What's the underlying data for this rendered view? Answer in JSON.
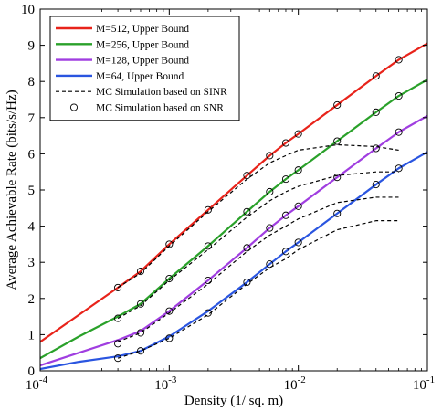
{
  "chart_data": {
    "type": "line",
    "xlabel": "Density (1/ sq. m)",
    "ylabel": "Average Achievable Rate (bits/s/Hz)",
    "xscale": "log",
    "xlim": [
      0.0001,
      0.1
    ],
    "ylim": [
      0,
      10
    ],
    "x_ticks": [
      0.0001,
      0.001,
      0.01,
      0.1
    ],
    "x_tick_labels": [
      {
        "base": "10",
        "exp": "-4"
      },
      {
        "base": "10",
        "exp": "-3"
      },
      {
        "base": "10",
        "exp": "-2"
      },
      {
        "base": "10",
        "exp": "-1"
      }
    ],
    "y_ticks": [
      0,
      1,
      2,
      3,
      4,
      5,
      6,
      7,
      8,
      9,
      10
    ],
    "y_tick_labels": [
      "0",
      "1",
      "2",
      "3",
      "4",
      "5",
      "6",
      "7",
      "8",
      "9",
      "10"
    ],
    "grid": false,
    "legend_position": "top-left",
    "series": [
      {
        "name": "M=512, Upper Bound",
        "style": "solid",
        "color": "#e8231a",
        "x": [
          0.0001,
          0.0002,
          0.0004,
          0.0006,
          0.001,
          0.002,
          0.004,
          0.006,
          0.008,
          0.01,
          0.02,
          0.04,
          0.06,
          0.1
        ],
        "y": [
          0.8,
          1.55,
          2.3,
          2.75,
          3.5,
          4.45,
          5.4,
          5.95,
          6.3,
          6.55,
          7.35,
          8.15,
          8.6,
          9.05
        ]
      },
      {
        "name": "M=256, Upper Bound",
        "style": "solid",
        "color": "#2aa12a",
        "x": [
          0.0001,
          0.0002,
          0.0004,
          0.0006,
          0.001,
          0.002,
          0.004,
          0.006,
          0.008,
          0.01,
          0.02,
          0.04,
          0.06,
          0.1
        ],
        "y": [
          0.35,
          0.95,
          1.5,
          1.85,
          2.55,
          3.45,
          4.4,
          4.95,
          5.3,
          5.55,
          6.35,
          7.15,
          7.6,
          8.05
        ]
      },
      {
        "name": "M=128, Upper Bound",
        "style": "solid",
        "color": "#a03ee0",
        "x": [
          0.0001,
          0.0002,
          0.0004,
          0.0006,
          0.001,
          0.002,
          0.004,
          0.006,
          0.008,
          0.01,
          0.02,
          0.04,
          0.06,
          0.1
        ],
        "y": [
          0.15,
          0.5,
          0.85,
          1.1,
          1.65,
          2.5,
          3.4,
          3.95,
          4.3,
          4.55,
          5.35,
          6.15,
          6.6,
          7.05
        ]
      },
      {
        "name": "M=64,  Upper Bound",
        "style": "solid",
        "color": "#2a55e0",
        "x": [
          0.0001,
          0.0002,
          0.0004,
          0.0006,
          0.001,
          0.002,
          0.004,
          0.006,
          0.008,
          0.01,
          0.02,
          0.04,
          0.06,
          0.1
        ],
        "y": [
          0.05,
          0.25,
          0.4,
          0.55,
          0.95,
          1.65,
          2.45,
          2.95,
          3.3,
          3.55,
          4.35,
          5.15,
          5.6,
          6.05
        ]
      },
      {
        "name": "MC Simulation based on SINR",
        "style": "dashed",
        "color": "#000000",
        "groups": [
          {
            "x": [
              0.0004,
              0.0006,
              0.001,
              0.002,
              0.004,
              0.006,
              0.008,
              0.01,
              0.02,
              0.04,
              0.06
            ],
            "y": [
              2.3,
              2.7,
              3.45,
              4.4,
              5.3,
              5.75,
              5.95,
              6.1,
              6.25,
              6.2,
              6.1
            ]
          },
          {
            "x": [
              0.0004,
              0.0006,
              0.001,
              0.002,
              0.004,
              0.006,
              0.008,
              0.01,
              0.02,
              0.04,
              0.06
            ],
            "y": [
              1.45,
              1.8,
              2.5,
              3.35,
              4.25,
              4.7,
              4.95,
              5.1,
              5.4,
              5.5,
              5.5
            ]
          },
          {
            "x": [
              0.0004,
              0.0006,
              0.001,
              0.002,
              0.004,
              0.006,
              0.008,
              0.01,
              0.02,
              0.04,
              0.06
            ],
            "y": [
              0.8,
              1.05,
              1.6,
              2.4,
              3.3,
              3.75,
              4.0,
              4.2,
              4.65,
              4.8,
              4.8
            ]
          },
          {
            "x": [
              0.0004,
              0.0006,
              0.001,
              0.002,
              0.004,
              0.006,
              0.008,
              0.01,
              0.02,
              0.04,
              0.06
            ],
            "y": [
              0.35,
              0.55,
              0.9,
              1.55,
              2.4,
              2.85,
              3.1,
              3.35,
              3.9,
              4.15,
              4.15
            ]
          }
        ]
      },
      {
        "name": "MC Simulation based on SNR",
        "style": "marker-circle",
        "color": "#000000",
        "groups": [
          {
            "x": [
              0.0004,
              0.0006,
              0.001,
              0.002,
              0.004,
              0.006,
              0.008,
              0.01,
              0.02,
              0.04,
              0.06
            ],
            "y": [
              2.3,
              2.75,
              3.5,
              4.45,
              5.4,
              5.95,
              6.3,
              6.55,
              7.35,
              8.15,
              8.6
            ]
          },
          {
            "x": [
              0.0004,
              0.0006,
              0.001,
              0.002,
              0.004,
              0.006,
              0.008,
              0.01,
              0.02,
              0.04,
              0.06
            ],
            "y": [
              1.45,
              1.85,
              2.55,
              3.45,
              4.4,
              4.95,
              5.3,
              5.55,
              6.35,
              7.15,
              7.6
            ]
          },
          {
            "x": [
              0.0004,
              0.0006,
              0.001,
              0.002,
              0.004,
              0.006,
              0.008,
              0.01,
              0.02,
              0.04,
              0.06
            ],
            "y": [
              0.75,
              1.05,
              1.65,
              2.5,
              3.4,
              3.95,
              4.3,
              4.55,
              5.35,
              6.15,
              6.6
            ]
          },
          {
            "x": [
              0.0004,
              0.0006,
              0.001,
              0.002,
              0.004,
              0.006,
              0.008,
              0.01,
              0.02,
              0.04,
              0.06
            ],
            "y": [
              0.35,
              0.55,
              0.9,
              1.6,
              2.45,
              2.95,
              3.3,
              3.55,
              4.35,
              5.15,
              5.6
            ]
          }
        ]
      }
    ]
  }
}
